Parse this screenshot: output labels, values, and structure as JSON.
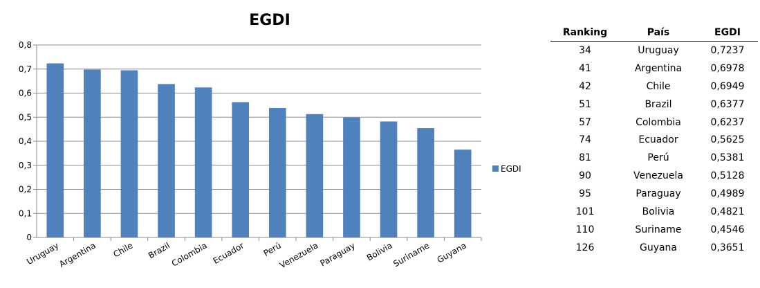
{
  "chart_data": {
    "type": "bar",
    "title": "EGDI",
    "categories": [
      "Uruguay",
      "Argentina",
      "Chile",
      "Brazil",
      "Colombia",
      "Ecuador",
      "Perú",
      "Venezuela",
      "Paraguay",
      "Bolivia",
      "Suriname",
      "Guyana"
    ],
    "series": [
      {
        "name": "EGDI",
        "values": [
          0.7237,
          0.6978,
          0.6949,
          0.6377,
          0.6237,
          0.5625,
          0.5381,
          0.5128,
          0.4989,
          0.4821,
          0.4546,
          0.3651
        ]
      }
    ],
    "ylim": [
      0,
      0.8
    ],
    "yticks": [
      "0",
      "0,1",
      "0,2",
      "0,3",
      "0,4",
      "0,5",
      "0,6",
      "0,7",
      "0,8"
    ],
    "grid": true,
    "legend_position": "right",
    "bar_color": "#4F81BD"
  },
  "table": {
    "headers": [
      "Ranking",
      "País",
      "EGDI"
    ],
    "rows": [
      [
        "34",
        "Uruguay",
        "0,7237"
      ],
      [
        "41",
        "Argentina",
        "0,6978"
      ],
      [
        "42",
        "Chile",
        "0,6949"
      ],
      [
        "51",
        "Brazil",
        "0,6377"
      ],
      [
        "57",
        "Colombia",
        "0,6237"
      ],
      [
        "74",
        "Ecuador",
        "0,5625"
      ],
      [
        "81",
        "Perú",
        "0,5381"
      ],
      [
        "90",
        "Venezuela",
        "0,5128"
      ],
      [
        "95",
        "Paraguay",
        "0,4989"
      ],
      [
        "101",
        "Bolivia",
        "0,4821"
      ],
      [
        "110",
        "Suriname",
        "0,4546"
      ],
      [
        "126",
        "Guyana",
        "0,3651"
      ]
    ]
  }
}
